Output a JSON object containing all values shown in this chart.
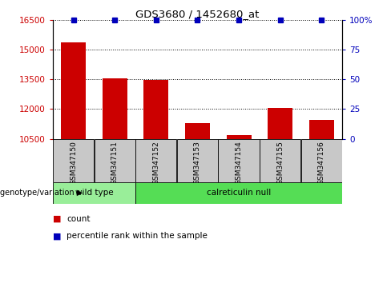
{
  "title": "GDS3680 / 1452680_at",
  "samples": [
    "GSM347150",
    "GSM347151",
    "GSM347152",
    "GSM347153",
    "GSM347154",
    "GSM347155",
    "GSM347156"
  ],
  "counts": [
    15350,
    13550,
    13480,
    11300,
    10700,
    12050,
    11450
  ],
  "ylim_left": [
    10500,
    16500
  ],
  "ylim_right": [
    0,
    100
  ],
  "yticks_left": [
    10500,
    12000,
    13500,
    15000,
    16500
  ],
  "yticks_right": [
    0,
    25,
    50,
    75,
    100
  ],
  "group_configs": [
    {
      "label": "wild type",
      "indices": [
        0,
        1
      ],
      "color": "#99EE99"
    },
    {
      "label": "calreticulin null",
      "indices": [
        2,
        3,
        4,
        5,
        6
      ],
      "color": "#55DD55"
    }
  ],
  "bar_color": "#CC0000",
  "percentile_color": "#0000BB",
  "bar_width": 0.6,
  "background_color": "#FFFFFF",
  "tick_bg_color": "#C8C8C8",
  "genotype_label": "genotype/variation",
  "legend_items": [
    "count",
    "percentile rank within the sample"
  ]
}
